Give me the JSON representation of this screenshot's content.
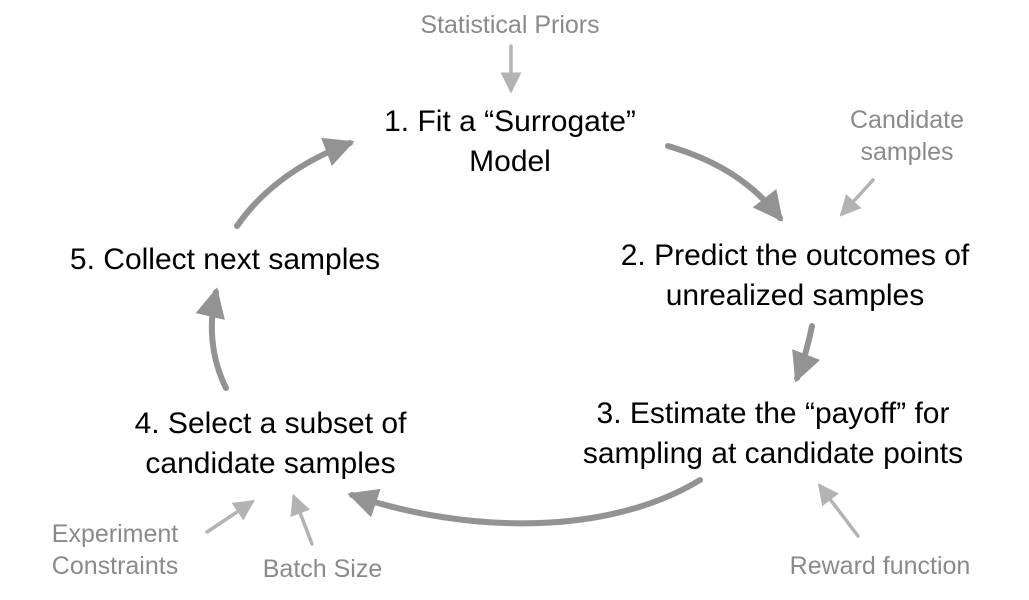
{
  "steps": [
    {
      "lines": [
        "1. Fit a “Surrogate”",
        "Model"
      ]
    },
    {
      "lines": [
        "2. Predict the outcomes of",
        "unrealized samples"
      ]
    },
    {
      "lines": [
        "3. Estimate the “payoff” for",
        "sampling at candidate points"
      ]
    },
    {
      "lines": [
        "4. Select a subset of",
        "candidate samples"
      ]
    },
    {
      "lines": [
        "5. Collect next samples"
      ]
    }
  ],
  "inputs": {
    "statistical_priors": "Statistical Priors",
    "candidate_samples": [
      "Candidate",
      "samples"
    ],
    "reward_function": "Reward function",
    "batch_size": "Batch Size",
    "experiment_constraints": [
      "Experiment",
      "Constraints"
    ]
  },
  "colors": {
    "cycle_arrow": "#939393",
    "input_arrow": "#b3b3b3",
    "step_text": "#000000",
    "input_text": "#8a8a8a"
  }
}
